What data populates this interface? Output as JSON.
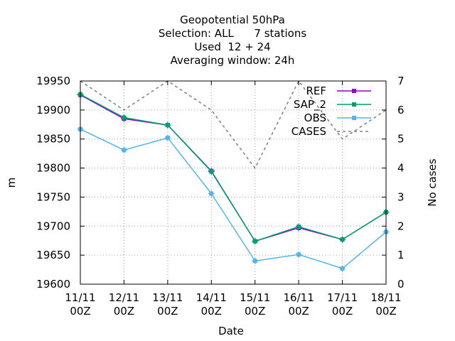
{
  "chart_data": {
    "type": "line",
    "title_lines": [
      "Geopotential 50hPa",
      "Selection: ALL      7 stations",
      "Used  12 + 24",
      "Averaging window: 24h"
    ],
    "xlabel": "Date",
    "ylabel": "m",
    "y2label": "No cases",
    "categories": [
      "11/11 00Z",
      "12/11 00Z",
      "13/11 00Z",
      "14/11 00Z",
      "15/11 00Z",
      "16/11 00Z",
      "17/11 00Z",
      "18/11 00Z"
    ],
    "x_tick_lines": [
      [
        "11/11",
        "00Z"
      ],
      [
        "12/11",
        "00Z"
      ],
      [
        "13/11",
        "00Z"
      ],
      [
        "14/11",
        "00Z"
      ],
      [
        "15/11",
        "00Z"
      ],
      [
        "16/11",
        "00Z"
      ],
      [
        "17/11",
        "00Z"
      ],
      [
        "18/11",
        "00Z"
      ]
    ],
    "ylim": [
      19600,
      19950
    ],
    "yticks": [
      19600,
      19650,
      19700,
      19750,
      19800,
      19850,
      19900,
      19950
    ],
    "y2lim": [
      0,
      7
    ],
    "y2ticks": [
      0,
      1,
      2,
      3,
      4,
      5,
      6,
      7
    ],
    "grid": true,
    "legend_position": "top-right",
    "series": [
      {
        "name": "REF",
        "axis": "y",
        "color": "#9400d3",
        "style": "solid",
        "marker": "square",
        "values": [
          19926,
          19885,
          19874,
          19795,
          19674,
          19697,
          19677,
          19724
        ]
      },
      {
        "name": "SAP_2",
        "axis": "y",
        "color": "#009e73",
        "style": "solid",
        "marker": "square",
        "values": [
          19927,
          19887,
          19874,
          19794,
          19674,
          19699,
          19677,
          19724
        ]
      },
      {
        "name": "OBS",
        "axis": "y",
        "color": "#56b4e9",
        "style": "solid",
        "marker": "square",
        "values": [
          19867,
          19831,
          19852,
          19756,
          19640,
          19651,
          19627,
          19690
        ]
      },
      {
        "name": "CASES",
        "axis": "y2",
        "color": "#808080",
        "style": "dashed",
        "marker": "none",
        "values": [
          7,
          6,
          7,
          6,
          4,
          7,
          5,
          6
        ]
      }
    ]
  }
}
